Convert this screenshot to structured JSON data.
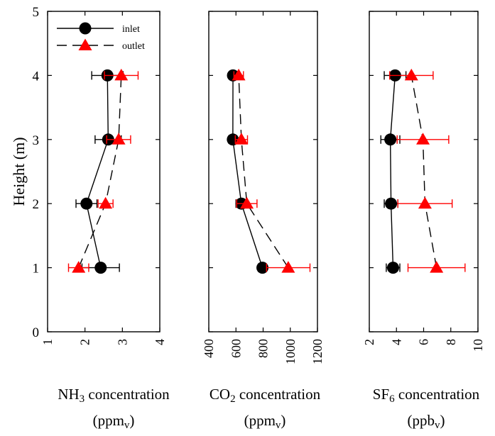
{
  "chart_data": {
    "type": "scatter",
    "ylabel": "Height (m)",
    "ylim": [
      0,
      5
    ],
    "yticks": [
      "0",
      "1",
      "2",
      "3",
      "4",
      "5"
    ],
    "legend": {
      "placement": "top-left",
      "entries": [
        "inlet",
        "outlet"
      ]
    },
    "colors": {
      "inlet": "#000000",
      "outlet": "#ff0000"
    },
    "panels": [
      {
        "xlabel": {
          "species": "NH",
          "sub": "3",
          "rest": " concentration",
          "unit_open": "(ppm",
          "unit_sub": "v",
          "unit_close": ")"
        },
        "xlim": [
          1,
          4
        ],
        "xticks": [
          "1",
          "2",
          "3",
          "4"
        ],
        "series": [
          {
            "name": "inlet",
            "y": [
              1,
              2,
              3,
              4
            ],
            "x": [
              2.42,
              2.04,
              2.62,
              2.6
            ],
            "err": [
              0.5,
              0.28,
              0.35,
              0.42
            ]
          },
          {
            "name": "outlet",
            "y": [
              1,
              2,
              3,
              4
            ],
            "x": [
              1.83,
              2.55,
              2.9,
              2.97
            ],
            "err": [
              0.27,
              0.2,
              0.32,
              0.45
            ]
          }
        ]
      },
      {
        "xlabel": {
          "species": "CO",
          "sub": "2",
          "rest": " concentration",
          "unit_open": "(ppm",
          "unit_sub": "v",
          "unit_close": ")"
        },
        "xlim": [
          400,
          1200
        ],
        "xticks": [
          "400",
          "600",
          "800",
          "1000",
          "1200"
        ],
        "series": [
          {
            "name": "inlet",
            "y": [
              1,
              2,
              3,
              4
            ],
            "x": [
              795,
              640,
              577,
              578
            ],
            "err": [
              30,
              40,
              30,
              25
            ]
          },
          {
            "name": "outlet",
            "y": [
              1,
              2,
              3,
              4
            ],
            "x": [
              985,
              680,
              640,
              620
            ],
            "err": [
              160,
              75,
              45,
              35
            ]
          }
        ]
      },
      {
        "xlabel": {
          "species": "SF",
          "sub": "6",
          "rest": " concentration",
          "unit_open": "(ppb",
          "unit_sub": "v",
          "unit_close": ")"
        },
        "xlim": [
          2,
          10
        ],
        "xticks": [
          "2",
          "4",
          "6",
          "8",
          "10"
        ],
        "series": [
          {
            "name": "inlet",
            "y": [
              1,
              2,
              3,
              4
            ],
            "x": [
              3.75,
              3.6,
              3.55,
              3.9
            ],
            "err": [
              0.5,
              0.5,
              0.7,
              0.8
            ]
          },
          {
            "name": "outlet",
            "y": [
              1,
              2,
              3,
              4
            ],
            "x": [
              6.95,
              6.1,
              5.95,
              5.1
            ],
            "err": [
              2.1,
              2.0,
              1.9,
              1.6
            ]
          }
        ]
      }
    ]
  }
}
